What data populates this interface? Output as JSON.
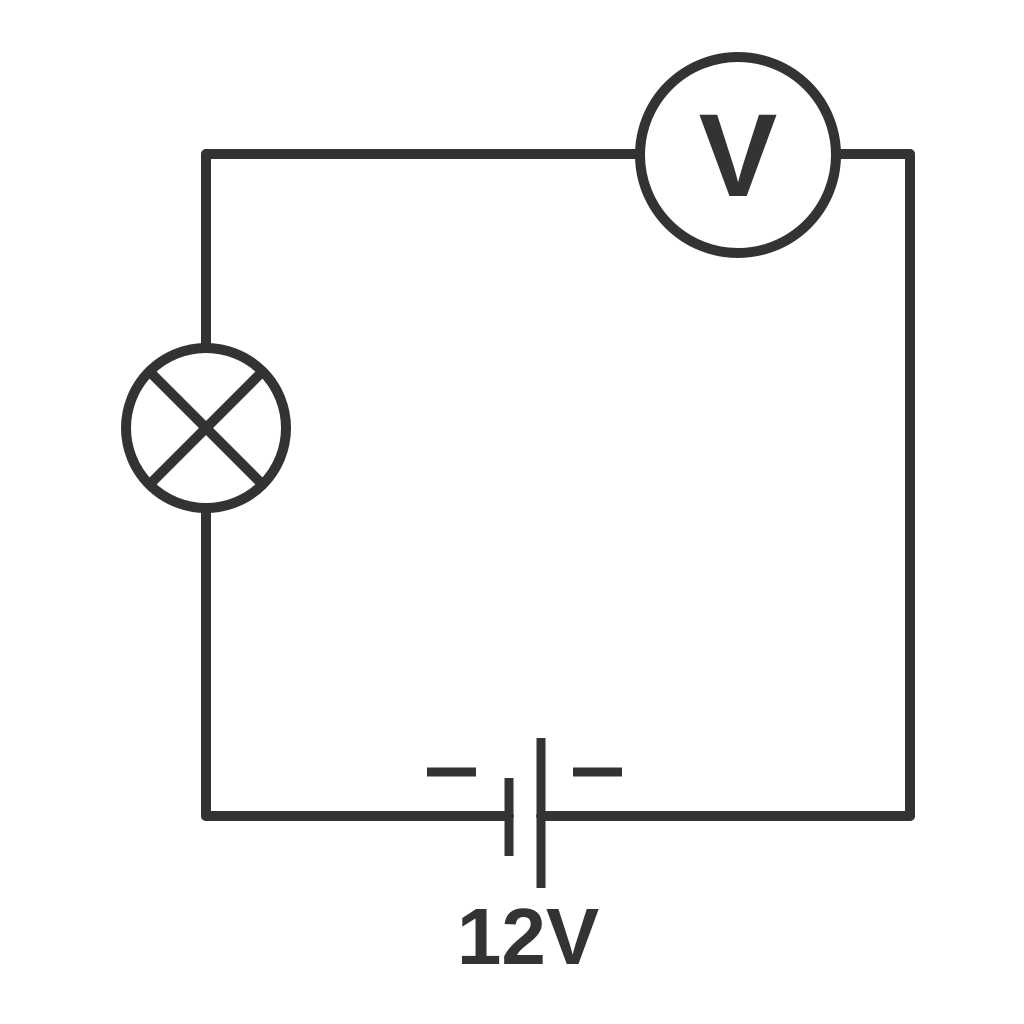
{
  "diagram": {
    "voltmeter": {
      "letter": "V",
      "icon": "voltmeter-icon"
    },
    "lamp": {
      "icon": "lamp-icon"
    },
    "battery": {
      "icon": "battery-icon",
      "voltage_label": "12V"
    },
    "colors": {
      "stroke": "#333333",
      "background": "#ffffff"
    }
  }
}
